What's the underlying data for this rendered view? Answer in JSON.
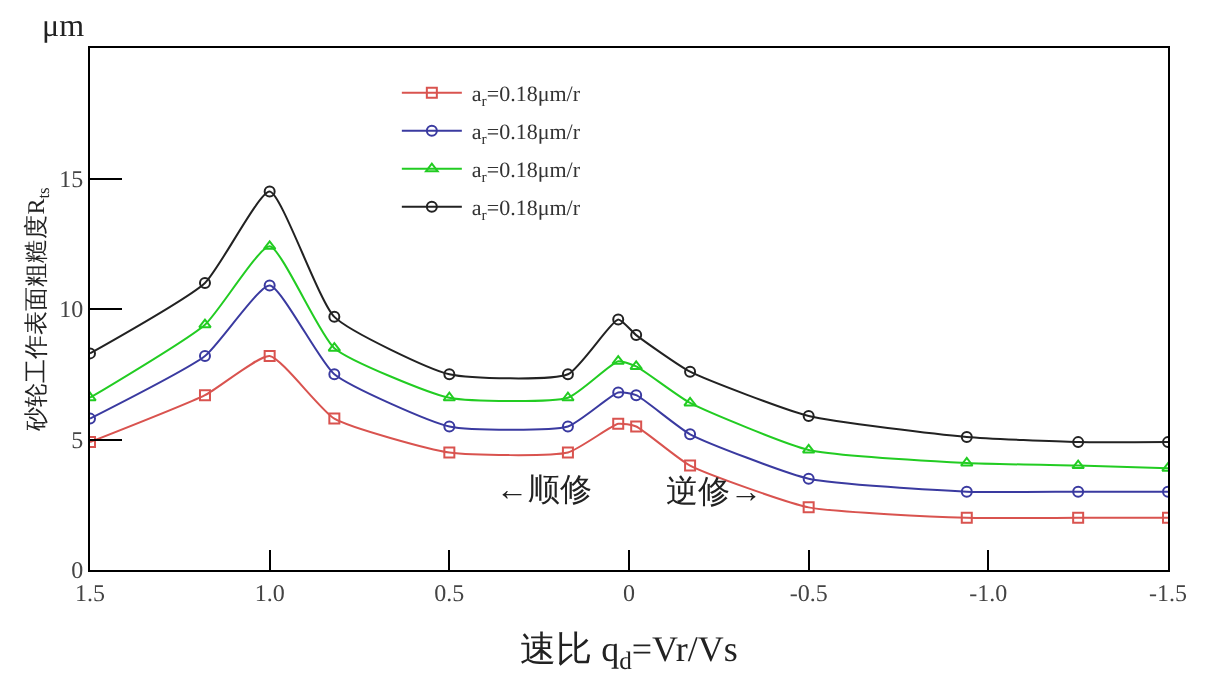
{
  "chart_data": {
    "type": "line",
    "xlabel": "速比 q$_{d}$=Vr/Vs",
    "ylabel": "砂轮工作表面粗糙度R$_{ts}$",
    "annotations": [
      "μm",
      "←顺修",
      "逆修→"
    ],
    "x": [
      1.5,
      1.18,
      1.0,
      0.82,
      0.5,
      0.17,
      0.03,
      -0.02,
      -0.17,
      -0.5,
      -0.94,
      -1.25,
      -1.5
    ],
    "series": [
      {
        "name": "a$_{r}$=0.18μm/r",
        "color": "#d9534f",
        "marker": "square",
        "values": [
          4.9,
          6.7,
          8.2,
          5.8,
          4.5,
          4.5,
          5.6,
          5.5,
          4.0,
          2.4,
          2.0,
          2.0,
          2.0
        ]
      },
      {
        "name": "a$_{r}$=0.18μm/r",
        "color": "#3a3aa0",
        "marker": "circle",
        "values": [
          5.8,
          8.2,
          10.9,
          7.5,
          5.5,
          5.5,
          6.8,
          6.7,
          5.2,
          3.5,
          3.0,
          3.0,
          3.0
        ]
      },
      {
        "name": "a$_{r}$=0.18μm/r",
        "color": "#22cc22",
        "marker": "triangle",
        "values": [
          6.6,
          9.4,
          12.4,
          8.5,
          6.6,
          6.6,
          8.0,
          7.8,
          6.4,
          4.6,
          4.1,
          4.0,
          3.9
        ]
      },
      {
        "name": "a$_{r}$=0.18μm/r",
        "color": "#222222",
        "marker": "circle",
        "values": [
          8.3,
          11.0,
          14.5,
          9.7,
          7.5,
          7.5,
          9.6,
          9.0,
          7.6,
          5.9,
          5.1,
          4.9,
          4.9
        ]
      }
    ],
    "xlim": [
      1.5,
      -1.5
    ],
    "xticks": [
      {
        "value": 1.5,
        "label": "1.5"
      },
      {
        "value": 1.0,
        "label": "1.0"
      },
      {
        "value": 0.5,
        "label": "0.5"
      },
      0,
      {
        "value": -0.5,
        "label": "-0.5"
      },
      {
        "value": -1.0,
        "label": "-1.0"
      },
      {
        "value": -1.5,
        "label": "-1.5"
      }
    ],
    "ylim": [
      0,
      20
    ],
    "yticks": [
      0,
      5,
      10,
      15
    ],
    "legend": "top",
    "line_style": "solid"
  }
}
